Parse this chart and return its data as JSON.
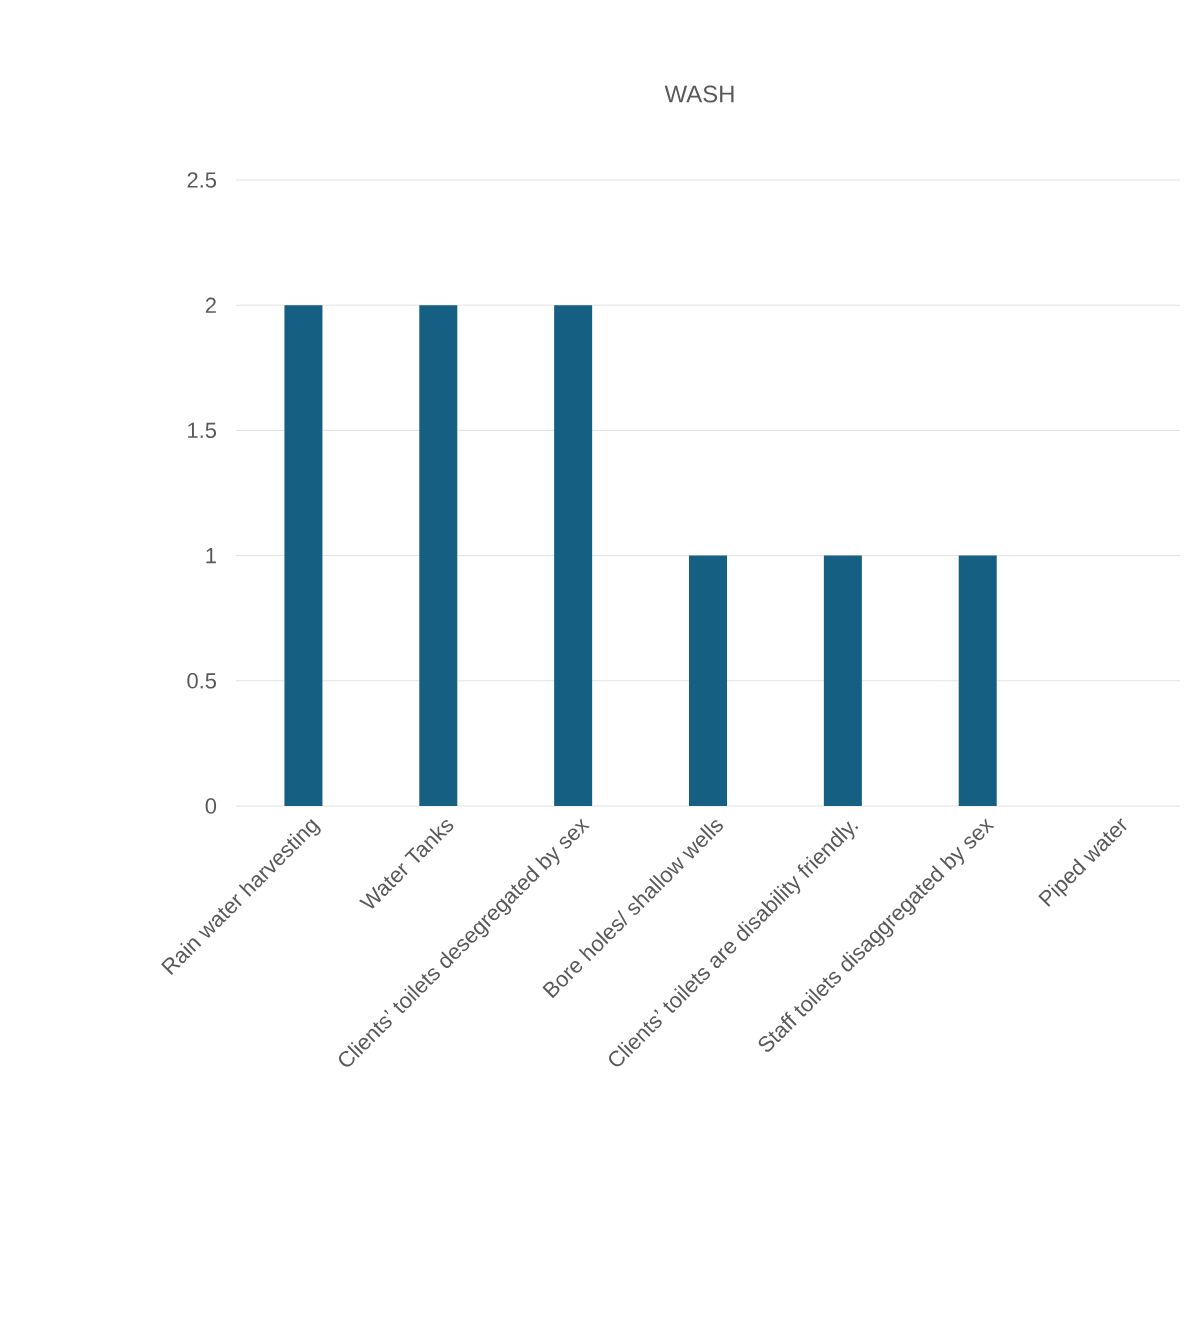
{
  "chart_data": {
    "type": "bar",
    "title": "WASH",
    "categories": [
      "Rain water harvesting",
      "Water Tanks",
      "Clients’ toilets desegregated by sex",
      "Bore holes/ shallow wells",
      "Clients’ toilets are disability friendly.",
      "Staff toilets disaggregated by sex",
      "Piped water"
    ],
    "values": [
      2,
      2,
      2,
      1,
      1,
      1,
      0
    ],
    "color": "#156082",
    "ylim": [
      0,
      2.5
    ],
    "yticks": [
      0,
      0.5,
      1,
      1.5,
      2,
      2.5
    ],
    "grid": "y"
  }
}
